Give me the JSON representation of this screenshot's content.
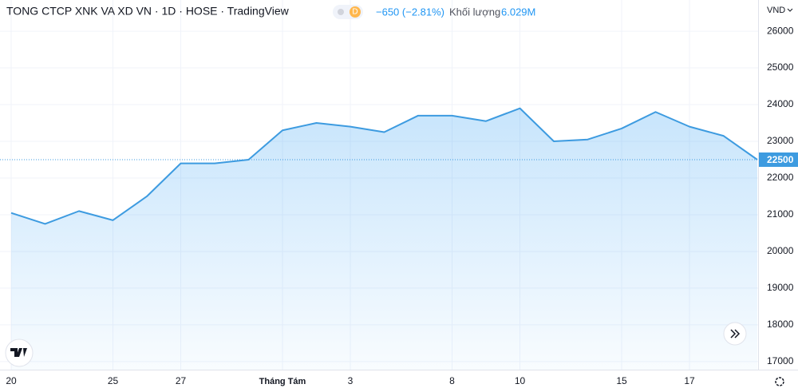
{
  "chart_data": {
    "type": "area",
    "title": "TONG CTCP XNK VA XD VN · 1D · HOSE · TradingView",
    "badge": "D",
    "change": "−650 (−2.81%)",
    "volume_label": "Khối lượng",
    "volume": "6.029M",
    "currency": "VND",
    "color": "#3d9be0",
    "categories": [
      "20",
      null,
      null,
      "25",
      null,
      "27",
      null,
      null,
      "Tháng Tám",
      null,
      "3",
      null,
      null,
      "8",
      null,
      "10",
      null,
      null,
      "15",
      null,
      "17",
      null,
      null
    ],
    "values": [
      21050,
      20750,
      21100,
      20850,
      21500,
      22400,
      22400,
      22500,
      23300,
      23500,
      23400,
      23250,
      23700,
      23700,
      23550,
      23900,
      23000,
      23050,
      23350,
      23800,
      23400,
      23150,
      22500
    ],
    "last_price": 22500,
    "ylim": [
      16780,
      26850
    ],
    "yticks": [
      17000,
      18000,
      19000,
      20000,
      21000,
      22000,
      23000,
      24000,
      25000,
      26000
    ],
    "grid": true
  }
}
